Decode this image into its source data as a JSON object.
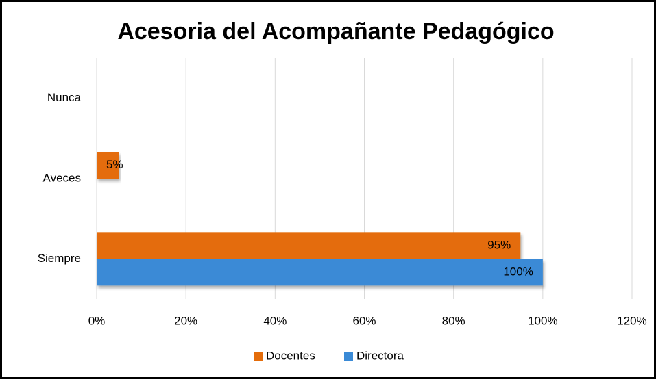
{
  "chart_data": {
    "type": "hbar",
    "title": "Acesoria del Acompañante Pedagógico",
    "categories": [
      "Nunca",
      "Aveces",
      "Siempre"
    ],
    "series": [
      {
        "name": "Docentes",
        "color": "#e46c0a",
        "values": [
          null,
          5,
          95
        ],
        "value_labels": [
          null,
          "5%",
          "95%"
        ]
      },
      {
        "name": "Directora",
        "color": "#3a8ad6",
        "values": [
          null,
          null,
          100
        ],
        "value_labels": [
          null,
          null,
          "100%"
        ]
      }
    ],
    "xlim": [
      0,
      120
    ],
    "xticks": [
      {
        "value": 0,
        "label": "0%"
      },
      {
        "value": 20,
        "label": "20%"
      },
      {
        "value": 40,
        "label": "40%"
      },
      {
        "value": 60,
        "label": "60%"
      },
      {
        "value": 80,
        "label": "80%"
      },
      {
        "value": 100,
        "label": "100%"
      },
      {
        "value": 120,
        "label": "120%"
      }
    ],
    "grid": true,
    "legend": "bottom"
  }
}
